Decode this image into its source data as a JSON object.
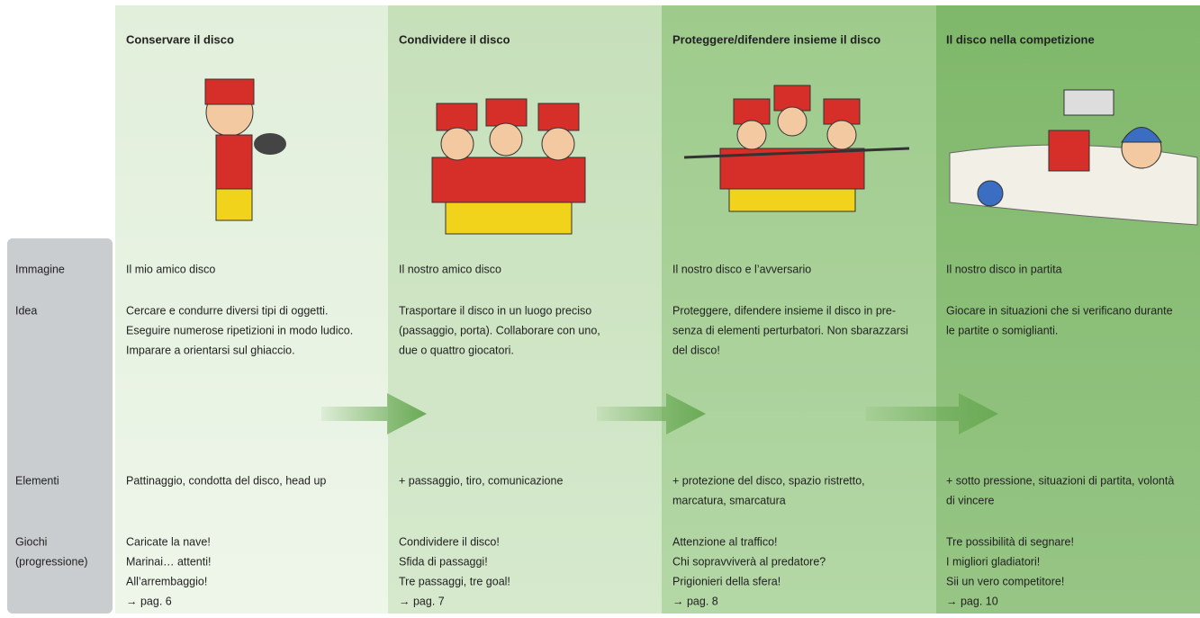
{
  "row_labels": [
    [
      "Immagine"
    ],
    [
      "Idea"
    ],
    [
      "Elementi"
    ],
    [
      "Giochi",
      "(progressione)"
    ]
  ],
  "columns": [
    {
      "title": "Conservare il disco",
      "immagine": "Il mio amico disco",
      "idea": [
        "Cercare e condurre diversi tipi di oggetti.",
        "Eseguire numerose ripetizioni in modo ludico.",
        "Imparare a orientarsi sul ghiaccio."
      ],
      "elementi": [
        "Pattinaggio, condotta del disco, head up"
      ],
      "giochi": [
        "Caricate la nave!",
        "Marinai… attenti!",
        "All’arrembaggio!",
        "→ pag. 6"
      ]
    },
    {
      "title": "Condividere il disco",
      "immagine": "Il nostro amico disco",
      "idea": [
        "Trasportare il disco in un luogo preciso",
        "(passaggio, porta). Collaborare con uno,",
        "due o quattro giocatori."
      ],
      "elementi": [
        "+ passaggio, tiro, comunicazione"
      ],
      "giochi": [
        "Condividere il disco!",
        "Sfida di passaggi!",
        "Tre passaggi, tre goal!",
        "→ pag. 7"
      ]
    },
    {
      "title": "Proteggere/difendere insieme il disco",
      "immagine": "Il nostro disco e l’avversario",
      "idea": [
        "Proteggere, difendere insieme il disco in pre-",
        "senza di elementi perturbatori. Non sbarazzarsi",
        "del disco!"
      ],
      "elementi": [
        "+ protezione del disco, spazio ristretto,",
        "marcatura, smarcatura"
      ],
      "giochi": [
        "Attenzione al traffico!",
        "Chi sopravviverà al predatore?",
        "Prigionieri della sfera!",
        "→ pag. 8"
      ]
    },
    {
      "title": "Il disco nella competizione",
      "immagine": "Il nostro disco in partita",
      "idea": [
        "Giocare in situazioni che si verificano durante",
        "le partite o somiglianti."
      ],
      "elementi": [
        "+ sotto pressione, situazioni di partita, volontà",
        "di vincere"
      ],
      "giochi": [
        "Tre possibilità di segnare!",
        "I migliori gladiatori!",
        "Sii un vero competitore!",
        "→ pag. 10"
      ]
    }
  ]
}
